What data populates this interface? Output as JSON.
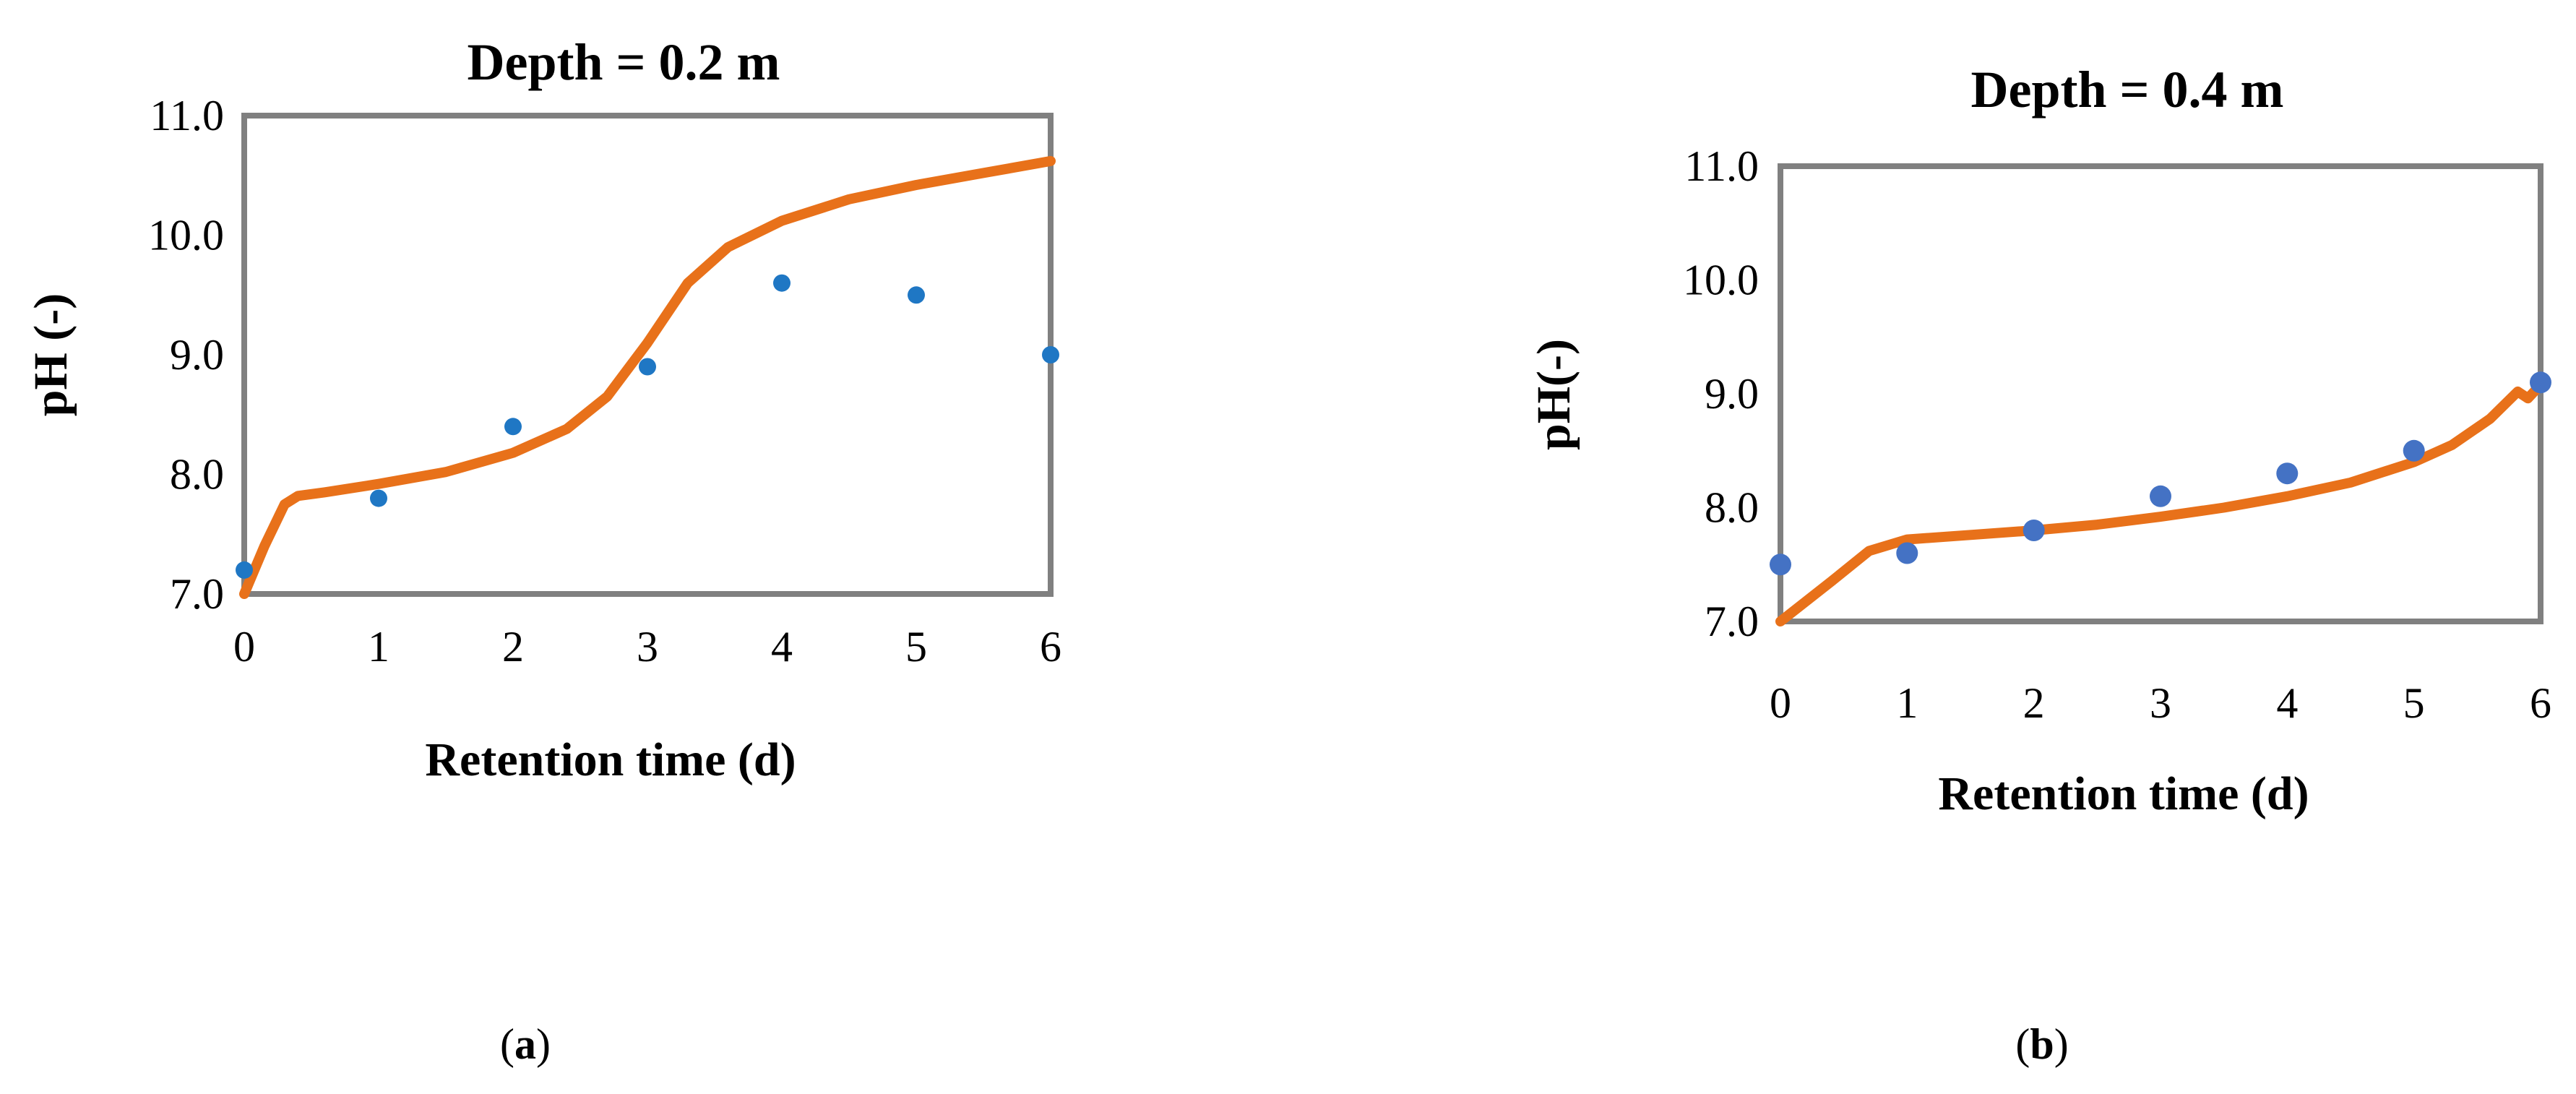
{
  "chart_data": [
    {
      "type": "scatter",
      "title": "Depth = 0.2 m",
      "xlabel": "Retention time (d)",
      "ylabel": "pH (-)",
      "panel_label": "a",
      "xlim": [
        0,
        6
      ],
      "ylim": [
        7.0,
        11.0
      ],
      "xticks": [
        "0",
        "1",
        "2",
        "3",
        "4",
        "5",
        "6"
      ],
      "yticks": [
        "7.0",
        "8.0",
        "9.0",
        "10.0",
        "11.0"
      ],
      "grid": false,
      "legend": "none",
      "series": [
        {
          "kind": "scatter",
          "color": "#1f77c4",
          "x": [
            0,
            1,
            2,
            3,
            4,
            5,
            6
          ],
          "y": [
            7.2,
            7.8,
            8.4,
            8.9,
            9.6,
            9.5,
            9.0
          ]
        },
        {
          "kind": "line",
          "color": "#e8711a",
          "x": [
            0,
            0.15,
            0.3,
            0.4,
            0.6,
            1.0,
            1.5,
            2.0,
            2.4,
            2.7,
            3.0,
            3.3,
            3.6,
            4.0,
            4.5,
            5.0,
            5.5,
            6.0
          ],
          "y": [
            7.0,
            7.4,
            7.75,
            7.82,
            7.85,
            7.92,
            8.02,
            8.18,
            8.38,
            8.65,
            9.1,
            9.6,
            9.9,
            10.12,
            10.3,
            10.42,
            10.52,
            10.62
          ]
        }
      ]
    },
    {
      "type": "scatter",
      "title": "Depth = 0.4 m",
      "xlabel": "Retention time (d)",
      "ylabel": "pH(-)",
      "panel_label": "b",
      "xlim": [
        0,
        6
      ],
      "ylim": [
        7.0,
        11.0
      ],
      "xticks": [
        "0",
        "1",
        "2",
        "3",
        "4",
        "5",
        "6"
      ],
      "yticks": [
        "7.0",
        "8.0",
        "9.0",
        "10.0",
        "11.0"
      ],
      "grid": false,
      "legend": "none",
      "series": [
        {
          "kind": "scatter",
          "color": "#4472c4",
          "x": [
            0,
            1,
            2,
            3,
            4,
            5,
            6
          ],
          "y": [
            7.5,
            7.6,
            7.8,
            8.1,
            8.3,
            8.5,
            9.1
          ]
        },
        {
          "kind": "line",
          "color": "#e8711a",
          "x": [
            0,
            0.4,
            0.7,
            1.0,
            1.5,
            2.0,
            2.5,
            3.0,
            3.5,
            4.0,
            4.5,
            5.0,
            5.3,
            5.6,
            5.82,
            5.9,
            6.0
          ],
          "y": [
            7.0,
            7.35,
            7.62,
            7.72,
            7.76,
            7.8,
            7.85,
            7.92,
            8.0,
            8.1,
            8.22,
            8.4,
            8.55,
            8.78,
            9.02,
            8.96,
            9.08
          ]
        }
      ]
    }
  ]
}
